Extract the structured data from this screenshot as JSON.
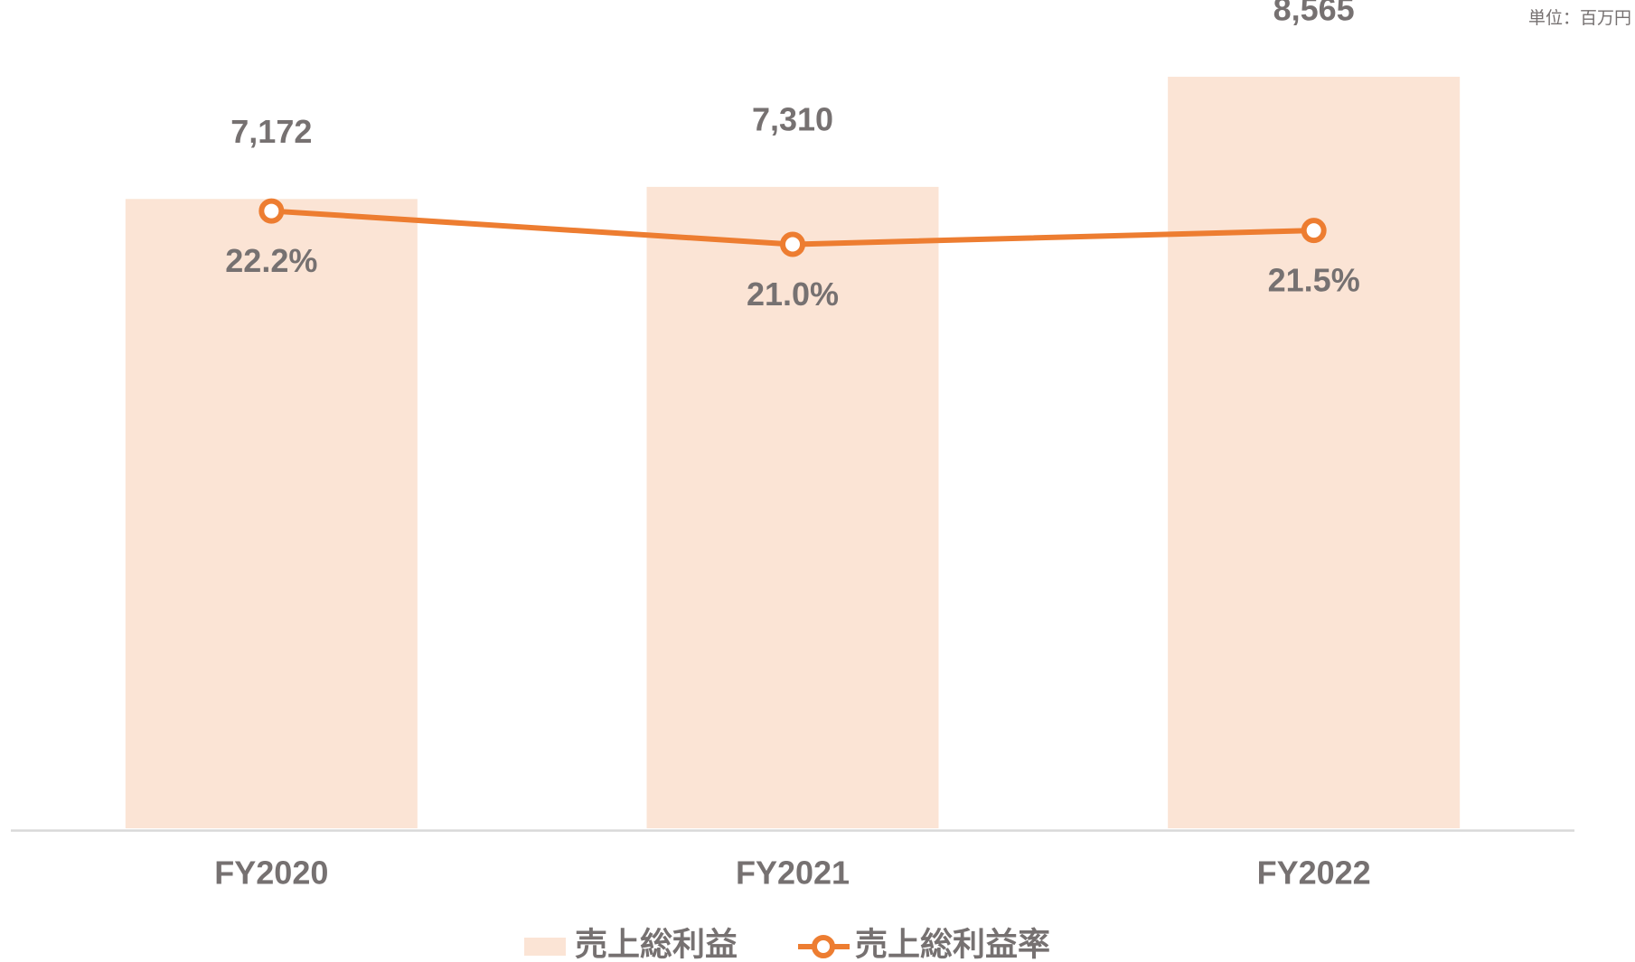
{
  "chart_data": {
    "type": "bar_line",
    "unit_label": "単位：百万円",
    "categories": [
      "FY2020",
      "FY2021",
      "FY2022"
    ],
    "series": [
      {
        "name": "売上総利益",
        "type": "bar",
        "color": "#fbe4d5",
        "values": [
          7172,
          7310,
          8565
        ],
        "value_labels": [
          "7,172",
          "7,310",
          "8,565"
        ]
      },
      {
        "name": "売上総利益率",
        "type": "line",
        "axis": "y2",
        "color": "#ed7d31",
        "values": [
          22.2,
          21.0,
          21.5
        ],
        "value_labels": [
          "22.2%",
          "21.0%",
          "21.5%"
        ]
      }
    ],
    "ylim": [
      0,
      9000
    ],
    "y2lim": [
      0,
      28.4
    ]
  }
}
